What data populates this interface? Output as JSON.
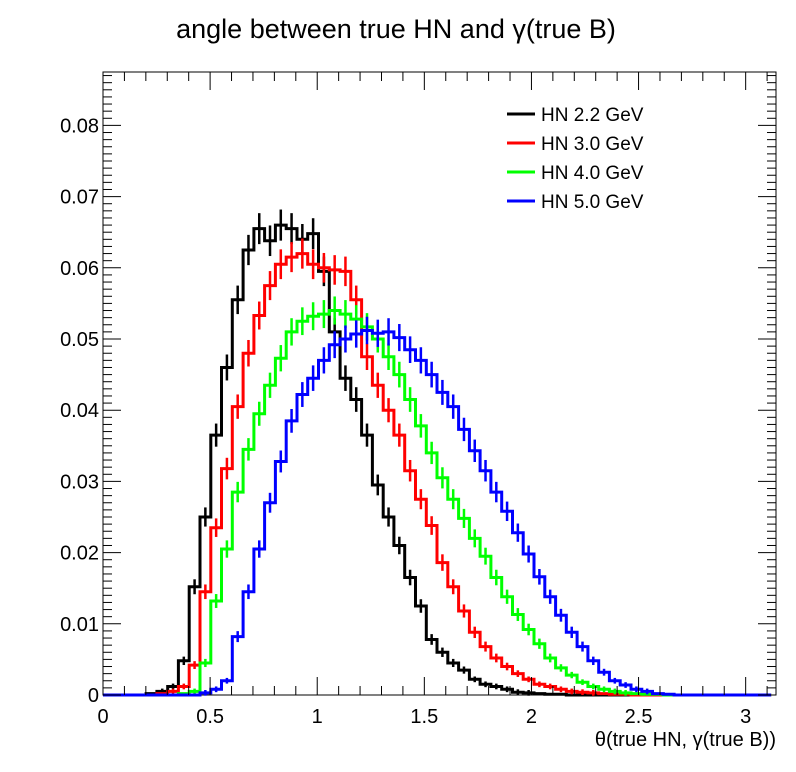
{
  "chart_data": {
    "type": "line",
    "title": "angle between true HN and  γ(true B)",
    "xlabel": "θ(true HN, γ(true B))",
    "ylabel": "",
    "xlim": [
      0,
      3.1416
    ],
    "ylim": [
      0,
      0.0875
    ],
    "x_ticks": [
      "0",
      "0.5",
      "1",
      "1.5",
      "2",
      "2.5",
      "3"
    ],
    "y_ticks": [
      "0",
      "0.01",
      "0.02",
      "0.03",
      "0.04",
      "0.05",
      "0.06",
      "0.07",
      "0.08"
    ],
    "bin_width": 0.0503,
    "grid": false,
    "legend_position": "top-right",
    "series": [
      {
        "name": "HN 2.2 GeV",
        "color": "#000000",
        "values": [
          0.0,
          0.0,
          0.0,
          0.0,
          0.0002,
          0.0005,
          0.0012,
          0.0048,
          0.0152,
          0.025,
          0.0365,
          0.046,
          0.0555,
          0.0625,
          0.0655,
          0.0638,
          0.066,
          0.0655,
          0.064,
          0.0648,
          0.0595,
          0.051,
          0.0445,
          0.0415,
          0.0365,
          0.0295,
          0.025,
          0.021,
          0.0165,
          0.0125,
          0.0078,
          0.006,
          0.0045,
          0.0035,
          0.0022,
          0.0015,
          0.0012,
          0.0008,
          0.0004,
          0.0003,
          0.0002,
          0.0001,
          0.0001,
          0.0,
          0.0,
          0.0,
          0.0,
          0.0,
          0.0,
          0.0,
          0.0,
          0.0,
          0.0,
          0.0,
          0.0,
          0.0,
          0.0,
          0.0,
          0.0,
          0.0,
          0.0,
          0.0
        ]
      },
      {
        "name": "HN 3.0 GeV",
        "color": "#ff0000",
        "values": [
          0.0,
          0.0,
          0.0,
          0.0,
          0.0,
          0.0002,
          0.0005,
          0.0012,
          0.0042,
          0.0145,
          0.0235,
          0.0318,
          0.0405,
          0.048,
          0.0533,
          0.0575,
          0.0605,
          0.0615,
          0.062,
          0.0605,
          0.06,
          0.0597,
          0.0595,
          0.0555,
          0.0475,
          0.0435,
          0.04,
          0.0365,
          0.0315,
          0.0275,
          0.0238,
          0.0186,
          0.0152,
          0.0118,
          0.0088,
          0.0068,
          0.0052,
          0.004,
          0.003,
          0.0022,
          0.0015,
          0.0012,
          0.0008,
          0.0005,
          0.0004,
          0.0003,
          0.0002,
          0.0001,
          0.0001,
          0.0,
          0.0,
          0.0,
          0.0,
          0.0,
          0.0,
          0.0,
          0.0,
          0.0,
          0.0,
          0.0,
          0.0,
          0.0
        ]
      },
      {
        "name": "HN 4.0 GeV",
        "color": "#00ff00",
        "values": [
          0.0,
          0.0,
          0.0,
          0.0,
          0.0,
          0.0,
          0.0,
          0.0002,
          0.0005,
          0.0045,
          0.0132,
          0.0205,
          0.0285,
          0.0345,
          0.0395,
          0.0435,
          0.0473,
          0.051,
          0.0525,
          0.0532,
          0.0535,
          0.054,
          0.0535,
          0.0528,
          0.0517,
          0.05,
          0.0475,
          0.045,
          0.0415,
          0.0378,
          0.034,
          0.0305,
          0.0275,
          0.0248,
          0.022,
          0.0195,
          0.0165,
          0.0138,
          0.0113,
          0.0092,
          0.0072,
          0.0052,
          0.0038,
          0.0028,
          0.0018,
          0.0012,
          0.0008,
          0.0005,
          0.0003,
          0.0002,
          0.0001,
          0.0001,
          0.0,
          0.0,
          0.0,
          0.0,
          0.0,
          0.0,
          0.0,
          0.0,
          0.0,
          0.0
        ]
      },
      {
        "name": "HN 5.0 GeV",
        "color": "#0000ff",
        "values": [
          0.0,
          0.0,
          0.0,
          0.0,
          0.0,
          0.0,
          0.0,
          0.0,
          0.0,
          0.0003,
          0.0008,
          0.002,
          0.0082,
          0.0145,
          0.0205,
          0.027,
          0.0328,
          0.0385,
          0.0422,
          0.0445,
          0.047,
          0.0492,
          0.05,
          0.0507,
          0.0512,
          0.0508,
          0.051,
          0.0502,
          0.0485,
          0.047,
          0.045,
          0.0425,
          0.0405,
          0.0373,
          0.0343,
          0.0315,
          0.0285,
          0.0258,
          0.0228,
          0.0198,
          0.0166,
          0.0138,
          0.0112,
          0.0088,
          0.0068,
          0.0048,
          0.0032,
          0.002,
          0.0014,
          0.0008,
          0.0005,
          0.0002,
          0.0001,
          0.0,
          0.0,
          0.0,
          0.0,
          0.0,
          0.0,
          0.0,
          0.0,
          0.0
        ]
      }
    ]
  }
}
